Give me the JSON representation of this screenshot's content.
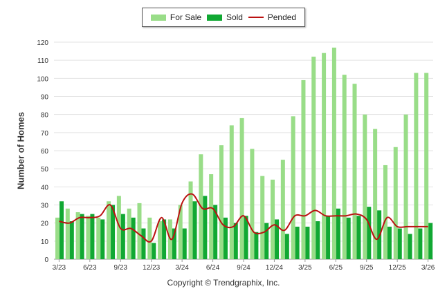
{
  "chart_data": {
    "type": "bar",
    "ylabel": "Number of Homes",
    "ylim": [
      0,
      120
    ],
    "yticks": [
      0,
      10,
      20,
      30,
      40,
      50,
      60,
      70,
      80,
      90,
      100,
      110,
      120
    ],
    "categories": [
      "2023-03",
      "2023-04",
      "2023-05",
      "2023-06",
      "2023-07",
      "2023-08",
      "2023-09",
      "2023-10",
      "2023-11",
      "2023-12",
      "2024-01",
      "2024-02",
      "2024-03",
      "2024-04",
      "2024-05",
      "2024-06",
      "2024-07",
      "2024-08",
      "2024-09",
      "2024-10",
      "2024-11",
      "2024-12",
      "2025-01",
      "2025-02",
      "2025-03",
      "2025-04",
      "2025-05",
      "2025-06",
      "2025-07",
      "2025-08",
      "2025-09",
      "2025-10",
      "2025-11",
      "2025-12",
      "2026-01",
      "2026-02",
      "2026-03"
    ],
    "xtick_labels": [
      {
        "index": 0,
        "label": "3/23"
      },
      {
        "index": 3,
        "label": "6/23"
      },
      {
        "index": 6,
        "label": "9/23"
      },
      {
        "index": 9,
        "label": "12/23"
      },
      {
        "index": 12,
        "label": "3/24"
      },
      {
        "index": 15,
        "label": "6/24"
      },
      {
        "index": 18,
        "label": "9/24"
      },
      {
        "index": 21,
        "label": "12/24"
      },
      {
        "index": 24,
        "label": "3/25"
      },
      {
        "index": 27,
        "label": "6/25"
      },
      {
        "index": 30,
        "label": "9/25"
      },
      {
        "index": 33,
        "label": "12/25"
      },
      {
        "index": 36,
        "label": "3/26"
      }
    ],
    "series": [
      {
        "name": "For Sale",
        "kind": "bar",
        "color": "#99dd88",
        "values": [
          23,
          28,
          26,
          24,
          23,
          32,
          35,
          28,
          31,
          23,
          21,
          22,
          30,
          43,
          58,
          47,
          63,
          74,
          78,
          61,
          46,
          44,
          55,
          79,
          99,
          112,
          114,
          117,
          102,
          97,
          80,
          72,
          52,
          62,
          80,
          103,
          103
        ]
      },
      {
        "name": "Sold",
        "kind": "bar",
        "color": "#11a833",
        "values": [
          32,
          21,
          25,
          25,
          22,
          30,
          25,
          23,
          17,
          9,
          22,
          17,
          17,
          32,
          35,
          30,
          23,
          20,
          24,
          15,
          20,
          22,
          14,
          18,
          18,
          21,
          24,
          28,
          23,
          24,
          29,
          27,
          18,
          17,
          14,
          17,
          20
        ]
      },
      {
        "name": "Pended",
        "kind": "line",
        "color": "#bb1111",
        "values": [
          21,
          20,
          23,
          23,
          24,
          30,
          17,
          17,
          13,
          10,
          23,
          11,
          31,
          36,
          28,
          28,
          19,
          18,
          24,
          15,
          15,
          19,
          16,
          24,
          24,
          27,
          24,
          24,
          24,
          25,
          22,
          11,
          23,
          18,
          18,
          18,
          18
        ]
      }
    ]
  },
  "legend": {
    "items": [
      {
        "label": "For Sale",
        "color": "#99dd88"
      },
      {
        "label": "Sold",
        "color": "#11a833"
      },
      {
        "label": "Pended",
        "color": "#bb1111"
      }
    ]
  },
  "footer": {
    "copyright": "Copyright © Trendgraphix, Inc."
  }
}
